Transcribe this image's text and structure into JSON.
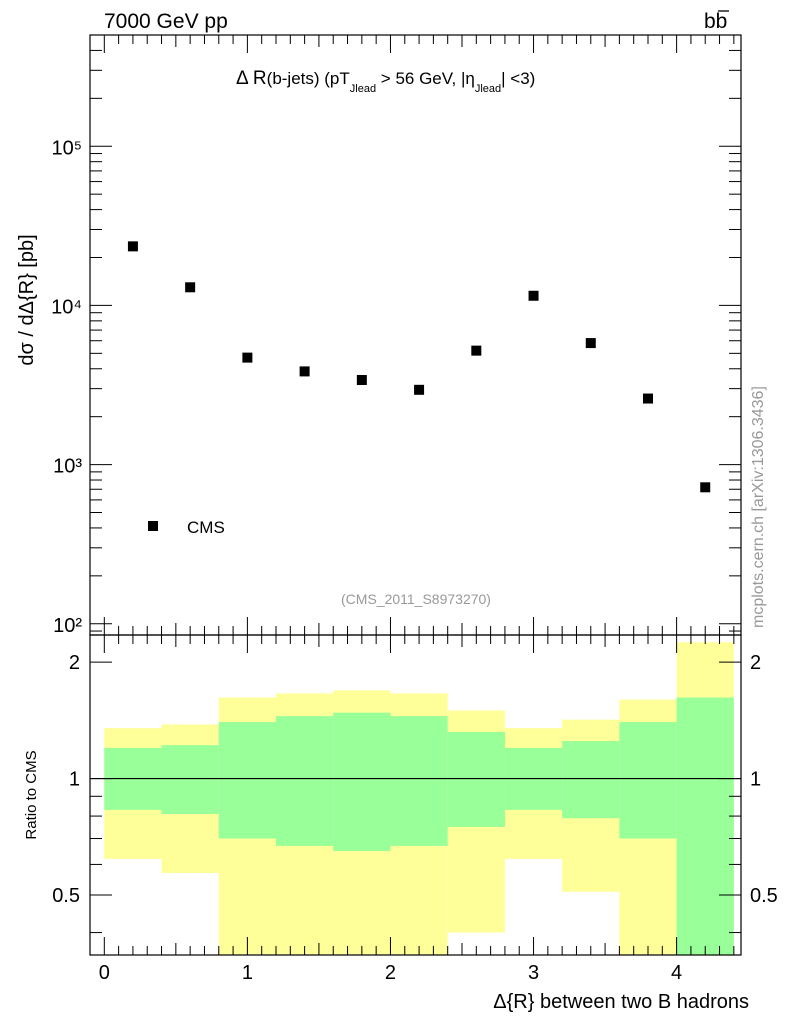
{
  "header": {
    "energy_label": "7000 GeV pp",
    "process_label": "bb",
    "plot_title_main": "Δ R",
    "plot_title_cut_1": "(b-jets) (pT",
    "plot_title_sub_1": "Jlead",
    "plot_title_cut_2": " >  56 GeV, |η",
    "plot_title_sub_2": "Jlead",
    "plot_title_cut_3": "| <3)",
    "watermark": "(CMS_2011_S8973270)",
    "side_credit": "mcplots.cern.ch [arXiv:1306.3436]"
  },
  "legend": {
    "entry": "CMS"
  },
  "colors": {
    "data_marker": "#000000",
    "band_inner": "#99ff99",
    "band_outer": "#ffff99",
    "ref_line": "#000000"
  },
  "chart_data": [
    {
      "type": "scatter",
      "ylabel": "dσ / dΔ{R} [pb]",
      "y_scale": "log",
      "ylim": [
        85,
        500000
      ],
      "xlim": [
        -0.1,
        4.45
      ],
      "y_tick_labels": [
        "10²",
        "10³",
        "10⁴",
        "10⁵"
      ],
      "series": [
        {
          "name": "CMS",
          "x": [
            0.2,
            0.6,
            1.0,
            1.4,
            1.8,
            2.2,
            2.6,
            3.0,
            3.4,
            3.8,
            4.2
          ],
          "values": [
            23500,
            13000,
            4700,
            3850,
            3400,
            2950,
            5200,
            11500,
            5800,
            2600,
            720
          ]
        }
      ],
      "legend_position": "bottom-left",
      "grid": false
    },
    {
      "type": "area",
      "ylabel": "Ratio to CMS",
      "xlabel": "Δ{R} between two B hadrons",
      "y_scale": "log",
      "ylim": [
        0.35,
        2.35
      ],
      "xlim": [
        -0.1,
        4.45
      ],
      "x_ticks": [
        0,
        1,
        2,
        3,
        4
      ],
      "x_tick_labels": [
        "0",
        "1",
        "2",
        "3",
        "4"
      ],
      "y_ticks": [
        0.5,
        1,
        2
      ],
      "y_tick_labels": [
        "0.5",
        "1",
        "2"
      ],
      "bin_edges": [
        0.0,
        0.4,
        0.8,
        1.2,
        1.6,
        2.0,
        2.4,
        2.8,
        3.2,
        3.6,
        4.0,
        4.4
      ],
      "series": [
        {
          "band": "outer",
          "low": [
            0.62,
            0.57,
            0.33,
            0.33,
            0.33,
            0.33,
            0.4,
            0.62,
            0.51,
            0.33,
            0.33
          ],
          "high": [
            1.35,
            1.38,
            1.62,
            1.66,
            1.69,
            1.66,
            1.5,
            1.35,
            1.42,
            1.6,
            2.25
          ]
        },
        {
          "band": "inner",
          "low": [
            0.83,
            0.81,
            0.7,
            0.67,
            0.65,
            0.67,
            0.75,
            0.83,
            0.79,
            0.7,
            0.33
          ],
          "high": [
            1.2,
            1.22,
            1.4,
            1.45,
            1.48,
            1.45,
            1.32,
            1.2,
            1.25,
            1.4,
            1.62
          ]
        }
      ],
      "reference_line": 1,
      "grid": false
    }
  ]
}
